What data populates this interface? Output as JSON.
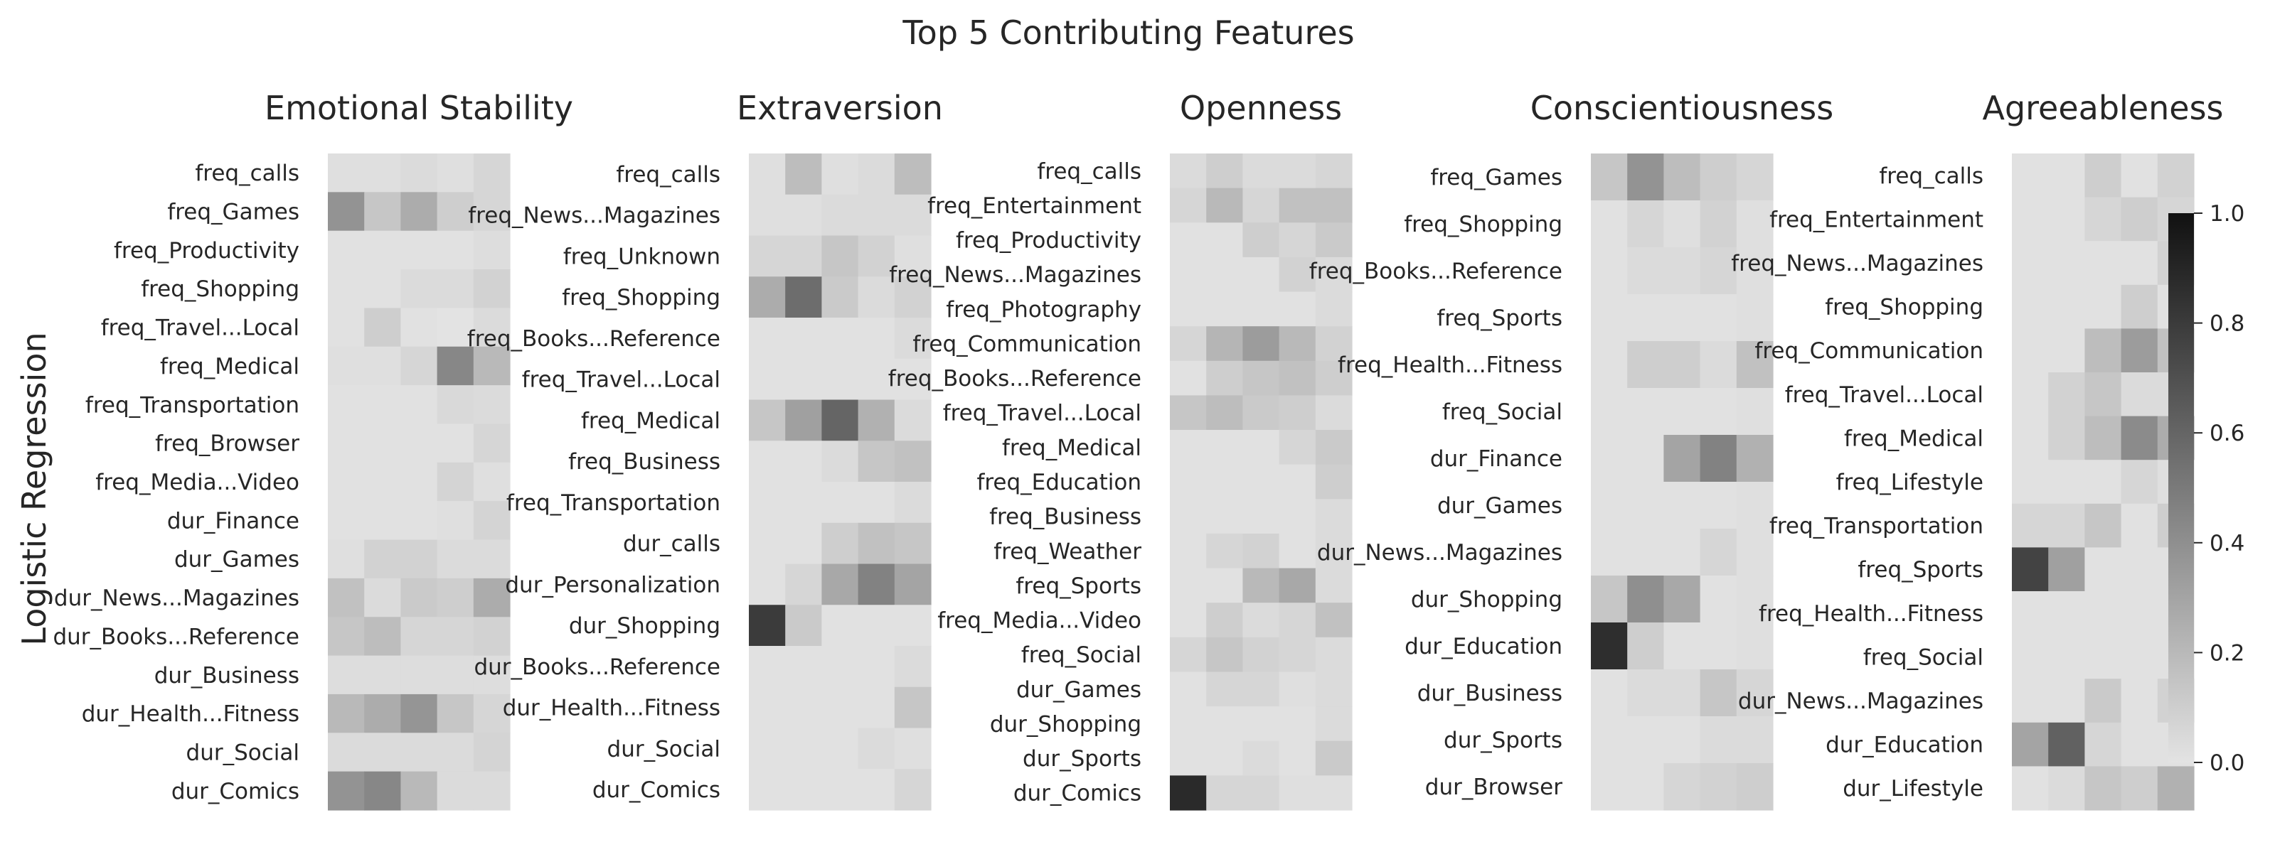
{
  "chart_data": {
    "type": "heatmap",
    "title": "Top 5 Contributing Features",
    "ylabel": "Logistic Regression",
    "colormap": {
      "low": "#e3e3e3",
      "high": "#111111"
    },
    "colorbar": {
      "min": 0.0,
      "max": 1.0,
      "ticks": [
        "0.0",
        "0.2",
        "0.4",
        "0.6",
        "0.8",
        "1.0"
      ]
    },
    "panels": [
      {
        "name": "Emotional Stability",
        "rows": [
          "freq_calls",
          "freq_Games",
          "freq_Productivity",
          "freq_Shopping",
          "freq_Travel...Local",
          "freq_Medical",
          "freq_Transportation",
          "freq_Browser",
          "freq_Media...Video",
          "dur_Finance",
          "dur_Games",
          "dur_News...Magazines",
          "dur_Books...Reference",
          "dur_Business",
          "dur_Health...Fitness",
          "dur_Social",
          "dur_Comics"
        ],
        "values": [
          [
            0.02,
            0.02,
            0.04,
            0.02,
            0.06
          ],
          [
            0.38,
            0.14,
            0.26,
            0.1,
            0.06
          ],
          [
            0.01,
            0.01,
            0.01,
            0.01,
            0.03
          ],
          [
            0.01,
            0.01,
            0.04,
            0.04,
            0.08
          ],
          [
            0.01,
            0.1,
            0.01,
            0.0,
            0.04
          ],
          [
            0.02,
            0.02,
            0.06,
            0.44,
            0.2
          ],
          [
            0.01,
            0.01,
            0.01,
            0.05,
            0.04
          ],
          [
            0.01,
            0.01,
            0.01,
            0.01,
            0.06
          ],
          [
            0.01,
            0.01,
            0.01,
            0.07,
            0.02
          ],
          [
            0.01,
            0.01,
            0.01,
            0.02,
            0.07
          ],
          [
            0.02,
            0.08,
            0.08,
            0.04,
            0.04
          ],
          [
            0.16,
            0.04,
            0.12,
            0.1,
            0.26
          ],
          [
            0.14,
            0.18,
            0.06,
            0.06,
            0.08
          ],
          [
            0.03,
            0.03,
            0.03,
            0.03,
            0.03
          ],
          [
            0.2,
            0.26,
            0.37,
            0.14,
            0.06
          ],
          [
            0.04,
            0.04,
            0.04,
            0.04,
            0.07
          ],
          [
            0.38,
            0.44,
            0.2,
            0.04,
            0.04
          ]
        ]
      },
      {
        "name": "Extraversion",
        "rows": [
          "freq_calls",
          "freq_News...Magazines",
          "freq_Unknown",
          "freq_Shopping",
          "freq_Books...Reference",
          "freq_Travel...Local",
          "freq_Medical",
          "freq_Business",
          "freq_Transportation",
          "dur_calls",
          "dur_Personalization",
          "dur_Shopping",
          "dur_Books...Reference",
          "dur_Health...Fitness",
          "dur_Social",
          "dur_Comics"
        ],
        "values": [
          [
            0.02,
            0.18,
            0.02,
            0.04,
            0.18
          ],
          [
            0.02,
            0.02,
            0.04,
            0.04,
            0.04
          ],
          [
            0.06,
            0.06,
            0.14,
            0.08,
            0.02
          ],
          [
            0.26,
            0.56,
            0.12,
            0.04,
            0.08
          ],
          [
            0.01,
            0.01,
            0.01,
            0.01,
            0.04
          ],
          [
            0.01,
            0.01,
            0.01,
            0.01,
            0.01
          ],
          [
            0.14,
            0.32,
            0.6,
            0.24,
            0.04
          ],
          [
            0.01,
            0.01,
            0.04,
            0.14,
            0.16
          ],
          [
            0.01,
            0.01,
            0.01,
            0.01,
            0.04
          ],
          [
            0.01,
            0.01,
            0.1,
            0.16,
            0.14
          ],
          [
            0.01,
            0.06,
            0.28,
            0.46,
            0.3
          ],
          [
            0.8,
            0.12,
            0.01,
            0.01,
            0.01
          ],
          [
            0.01,
            0.01,
            0.01,
            0.01,
            0.04
          ],
          [
            0.01,
            0.01,
            0.01,
            0.01,
            0.14
          ],
          [
            0.01,
            0.01,
            0.01,
            0.04,
            0.02
          ],
          [
            0.01,
            0.01,
            0.01,
            0.01,
            0.06
          ]
        ]
      },
      {
        "name": "Openness",
        "rows": [
          "freq_calls",
          "freq_Entertainment",
          "freq_Productivity",
          "freq_News...Magazines",
          "freq_Photography",
          "freq_Communication",
          "freq_Books...Reference",
          "freq_Travel...Local",
          "freq_Medical",
          "freq_Education",
          "freq_Business",
          "freq_Weather",
          "freq_Sports",
          "freq_Media...Video",
          "freq_Social",
          "dur_Games",
          "dur_Shopping",
          "dur_Sports",
          "dur_Comics"
        ],
        "values": [
          [
            0.04,
            0.1,
            0.04,
            0.04,
            0.06
          ],
          [
            0.06,
            0.2,
            0.06,
            0.16,
            0.16
          ],
          [
            0.01,
            0.01,
            0.1,
            0.06,
            0.12
          ],
          [
            0.01,
            0.01,
            0.01,
            0.08,
            0.04
          ],
          [
            0.01,
            0.01,
            0.01,
            0.01,
            0.04
          ],
          [
            0.06,
            0.22,
            0.34,
            0.2,
            0.08
          ],
          [
            0.01,
            0.1,
            0.14,
            0.16,
            0.1
          ],
          [
            0.14,
            0.18,
            0.12,
            0.1,
            0.04
          ],
          [
            0.01,
            0.01,
            0.01,
            0.06,
            0.12
          ],
          [
            0.01,
            0.01,
            0.01,
            0.01,
            0.1
          ],
          [
            0.01,
            0.01,
            0.01,
            0.01,
            0.04
          ],
          [
            0.01,
            0.06,
            0.08,
            0.01,
            0.04
          ],
          [
            0.01,
            0.01,
            0.2,
            0.28,
            0.04
          ],
          [
            0.01,
            0.1,
            0.04,
            0.06,
            0.16
          ],
          [
            0.06,
            0.14,
            0.08,
            0.06,
            0.04
          ],
          [
            0.01,
            0.06,
            0.06,
            0.02,
            0.04
          ],
          [
            0.01,
            0.01,
            0.01,
            0.01,
            0.04
          ],
          [
            0.01,
            0.01,
            0.04,
            0.01,
            0.12
          ],
          [
            0.88,
            0.06,
            0.06,
            0.02,
            0.02
          ]
        ]
      },
      {
        "name": "Conscientiousness",
        "rows": [
          "freq_Games",
          "freq_Shopping",
          "freq_Books...Reference",
          "freq_Sports",
          "freq_Health...Fitness",
          "freq_Social",
          "dur_Finance",
          "dur_Games",
          "dur_News...Magazines",
          "dur_Shopping",
          "dur_Education",
          "dur_Business",
          "dur_Sports",
          "dur_Browser"
        ],
        "values": [
          [
            0.14,
            0.38,
            0.18,
            0.1,
            0.06
          ],
          [
            0.01,
            0.06,
            0.02,
            0.08,
            0.02
          ],
          [
            0.01,
            0.04,
            0.04,
            0.06,
            0.02
          ],
          [
            0.01,
            0.01,
            0.01,
            0.01,
            0.02
          ],
          [
            0.01,
            0.1,
            0.1,
            0.04,
            0.16
          ],
          [
            0.01,
            0.01,
            0.01,
            0.01,
            0.02
          ],
          [
            0.01,
            0.01,
            0.3,
            0.46,
            0.24
          ],
          [
            0.01,
            0.01,
            0.01,
            0.01,
            0.02
          ],
          [
            0.01,
            0.01,
            0.01,
            0.06,
            0.02
          ],
          [
            0.14,
            0.4,
            0.28,
            0.01,
            0.02
          ],
          [
            0.86,
            0.1,
            0.01,
            0.01,
            0.02
          ],
          [
            0.01,
            0.04,
            0.04,
            0.14,
            0.06
          ],
          [
            0.01,
            0.01,
            0.01,
            0.04,
            0.04
          ],
          [
            0.01,
            0.01,
            0.06,
            0.08,
            0.1
          ]
        ]
      },
      {
        "name": "Agreeableness",
        "rows": [
          "freq_calls",
          "freq_Entertainment",
          "freq_News...Magazines",
          "freq_Shopping",
          "freq_Communication",
          "freq_Travel...Local",
          "freq_Medical",
          "freq_Lifestyle",
          "freq_Transportation",
          "freq_Sports",
          "freq_Health...Fitness",
          "freq_Social",
          "dur_News...Magazines",
          "dur_Education",
          "dur_Lifestyle"
        ],
        "values": [
          [
            0.01,
            0.01,
            0.1,
            0.01,
            0.08
          ],
          [
            0.01,
            0.01,
            0.06,
            0.1,
            0.06
          ],
          [
            0.01,
            0.01,
            0.01,
            0.01,
            0.08
          ],
          [
            0.01,
            0.01,
            0.01,
            0.1,
            0.01
          ],
          [
            0.01,
            0.01,
            0.18,
            0.34,
            0.16
          ],
          [
            0.01,
            0.08,
            0.14,
            0.04,
            0.04
          ],
          [
            0.01,
            0.08,
            0.18,
            0.42,
            0.26
          ],
          [
            0.01,
            0.01,
            0.01,
            0.06,
            0.02
          ],
          [
            0.06,
            0.06,
            0.14,
            0.01,
            0.1
          ],
          [
            0.76,
            0.32,
            0.01,
            0.01,
            0.01
          ],
          [
            0.01,
            0.01,
            0.01,
            0.01,
            0.01
          ],
          [
            0.01,
            0.01,
            0.01,
            0.01,
            0.01
          ],
          [
            0.01,
            0.01,
            0.12,
            0.01,
            0.08
          ],
          [
            0.3,
            0.62,
            0.06,
            0.01,
            0.01
          ],
          [
            0.01,
            0.04,
            0.14,
            0.1,
            0.24
          ]
        ]
      }
    ]
  }
}
